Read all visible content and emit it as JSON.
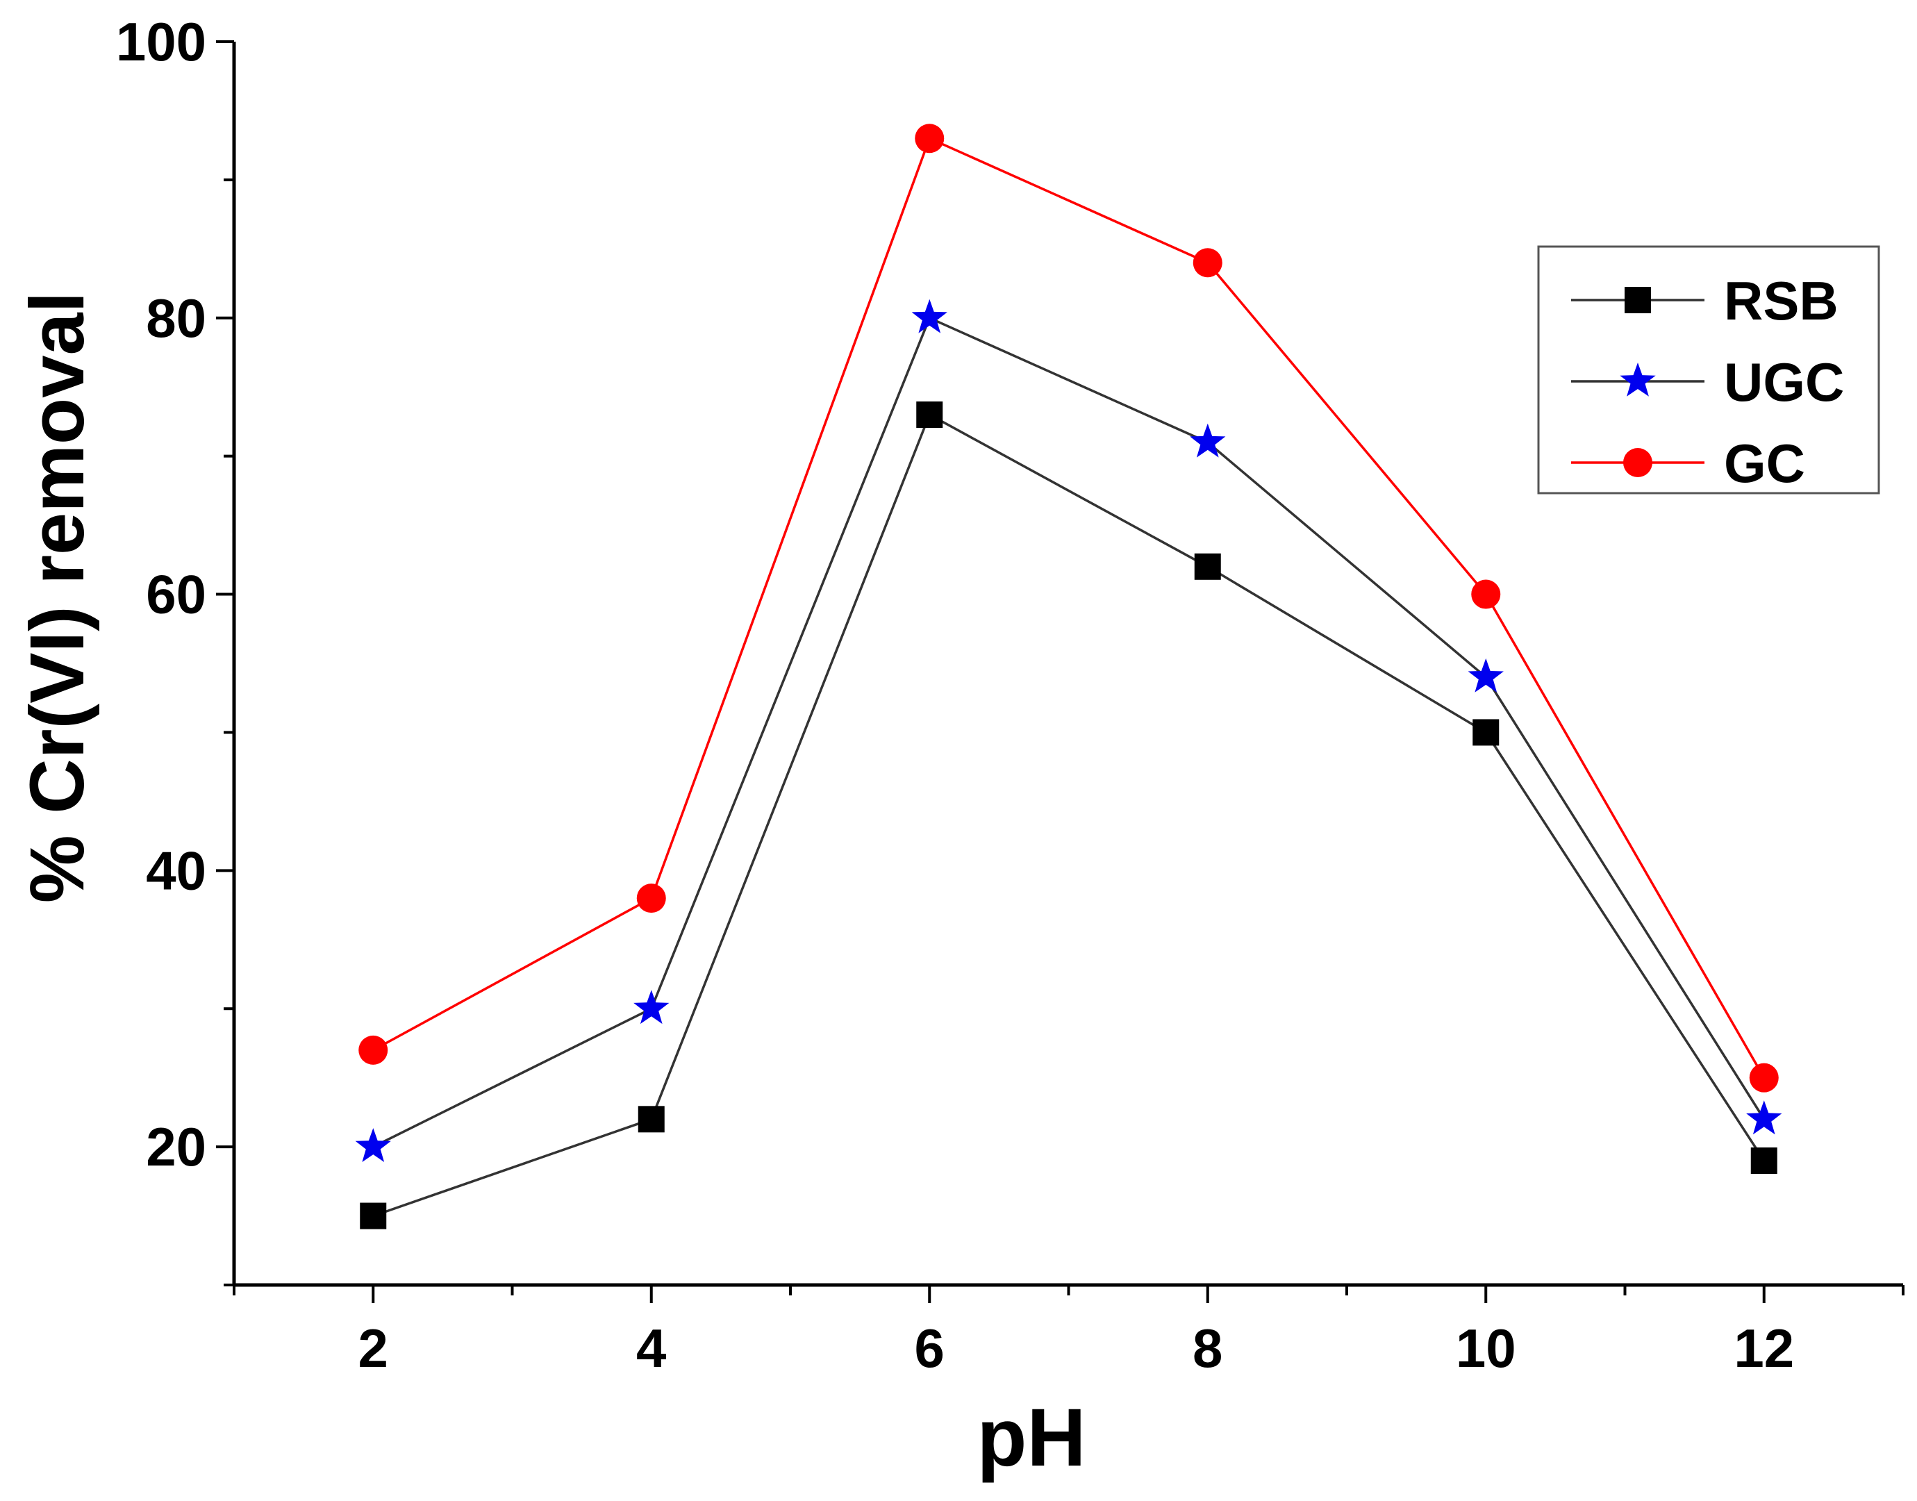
{
  "chart_data": {
    "type": "line",
    "title": "",
    "xlabel": "pH",
    "ylabel": "% Cr(VI) removal",
    "x": [
      2,
      4,
      6,
      8,
      10,
      12
    ],
    "xticks": [
      "2",
      "4",
      "6",
      "8",
      "10",
      "12"
    ],
    "yticks": [
      "20",
      "40",
      "60",
      "80",
      "100"
    ],
    "xlim": [
      1,
      13
    ],
    "ylim": [
      10,
      100
    ],
    "grid": false,
    "legend_position": "top-right",
    "series": [
      {
        "name": "RSB",
        "marker": "square",
        "line_color": "#333333",
        "marker_color": "#000000",
        "values": [
          15,
          22,
          73,
          62,
          50,
          19
        ]
      },
      {
        "name": "UGC",
        "marker": "star",
        "line_color": "#333333",
        "marker_color": "#0000ee",
        "values": [
          20,
          30,
          80,
          71,
          54,
          22
        ]
      },
      {
        "name": "GC",
        "marker": "circle",
        "line_color": "#ff0000",
        "marker_color": "#ff0000",
        "values": [
          27,
          38,
          93,
          84,
          60,
          25
        ]
      }
    ]
  }
}
